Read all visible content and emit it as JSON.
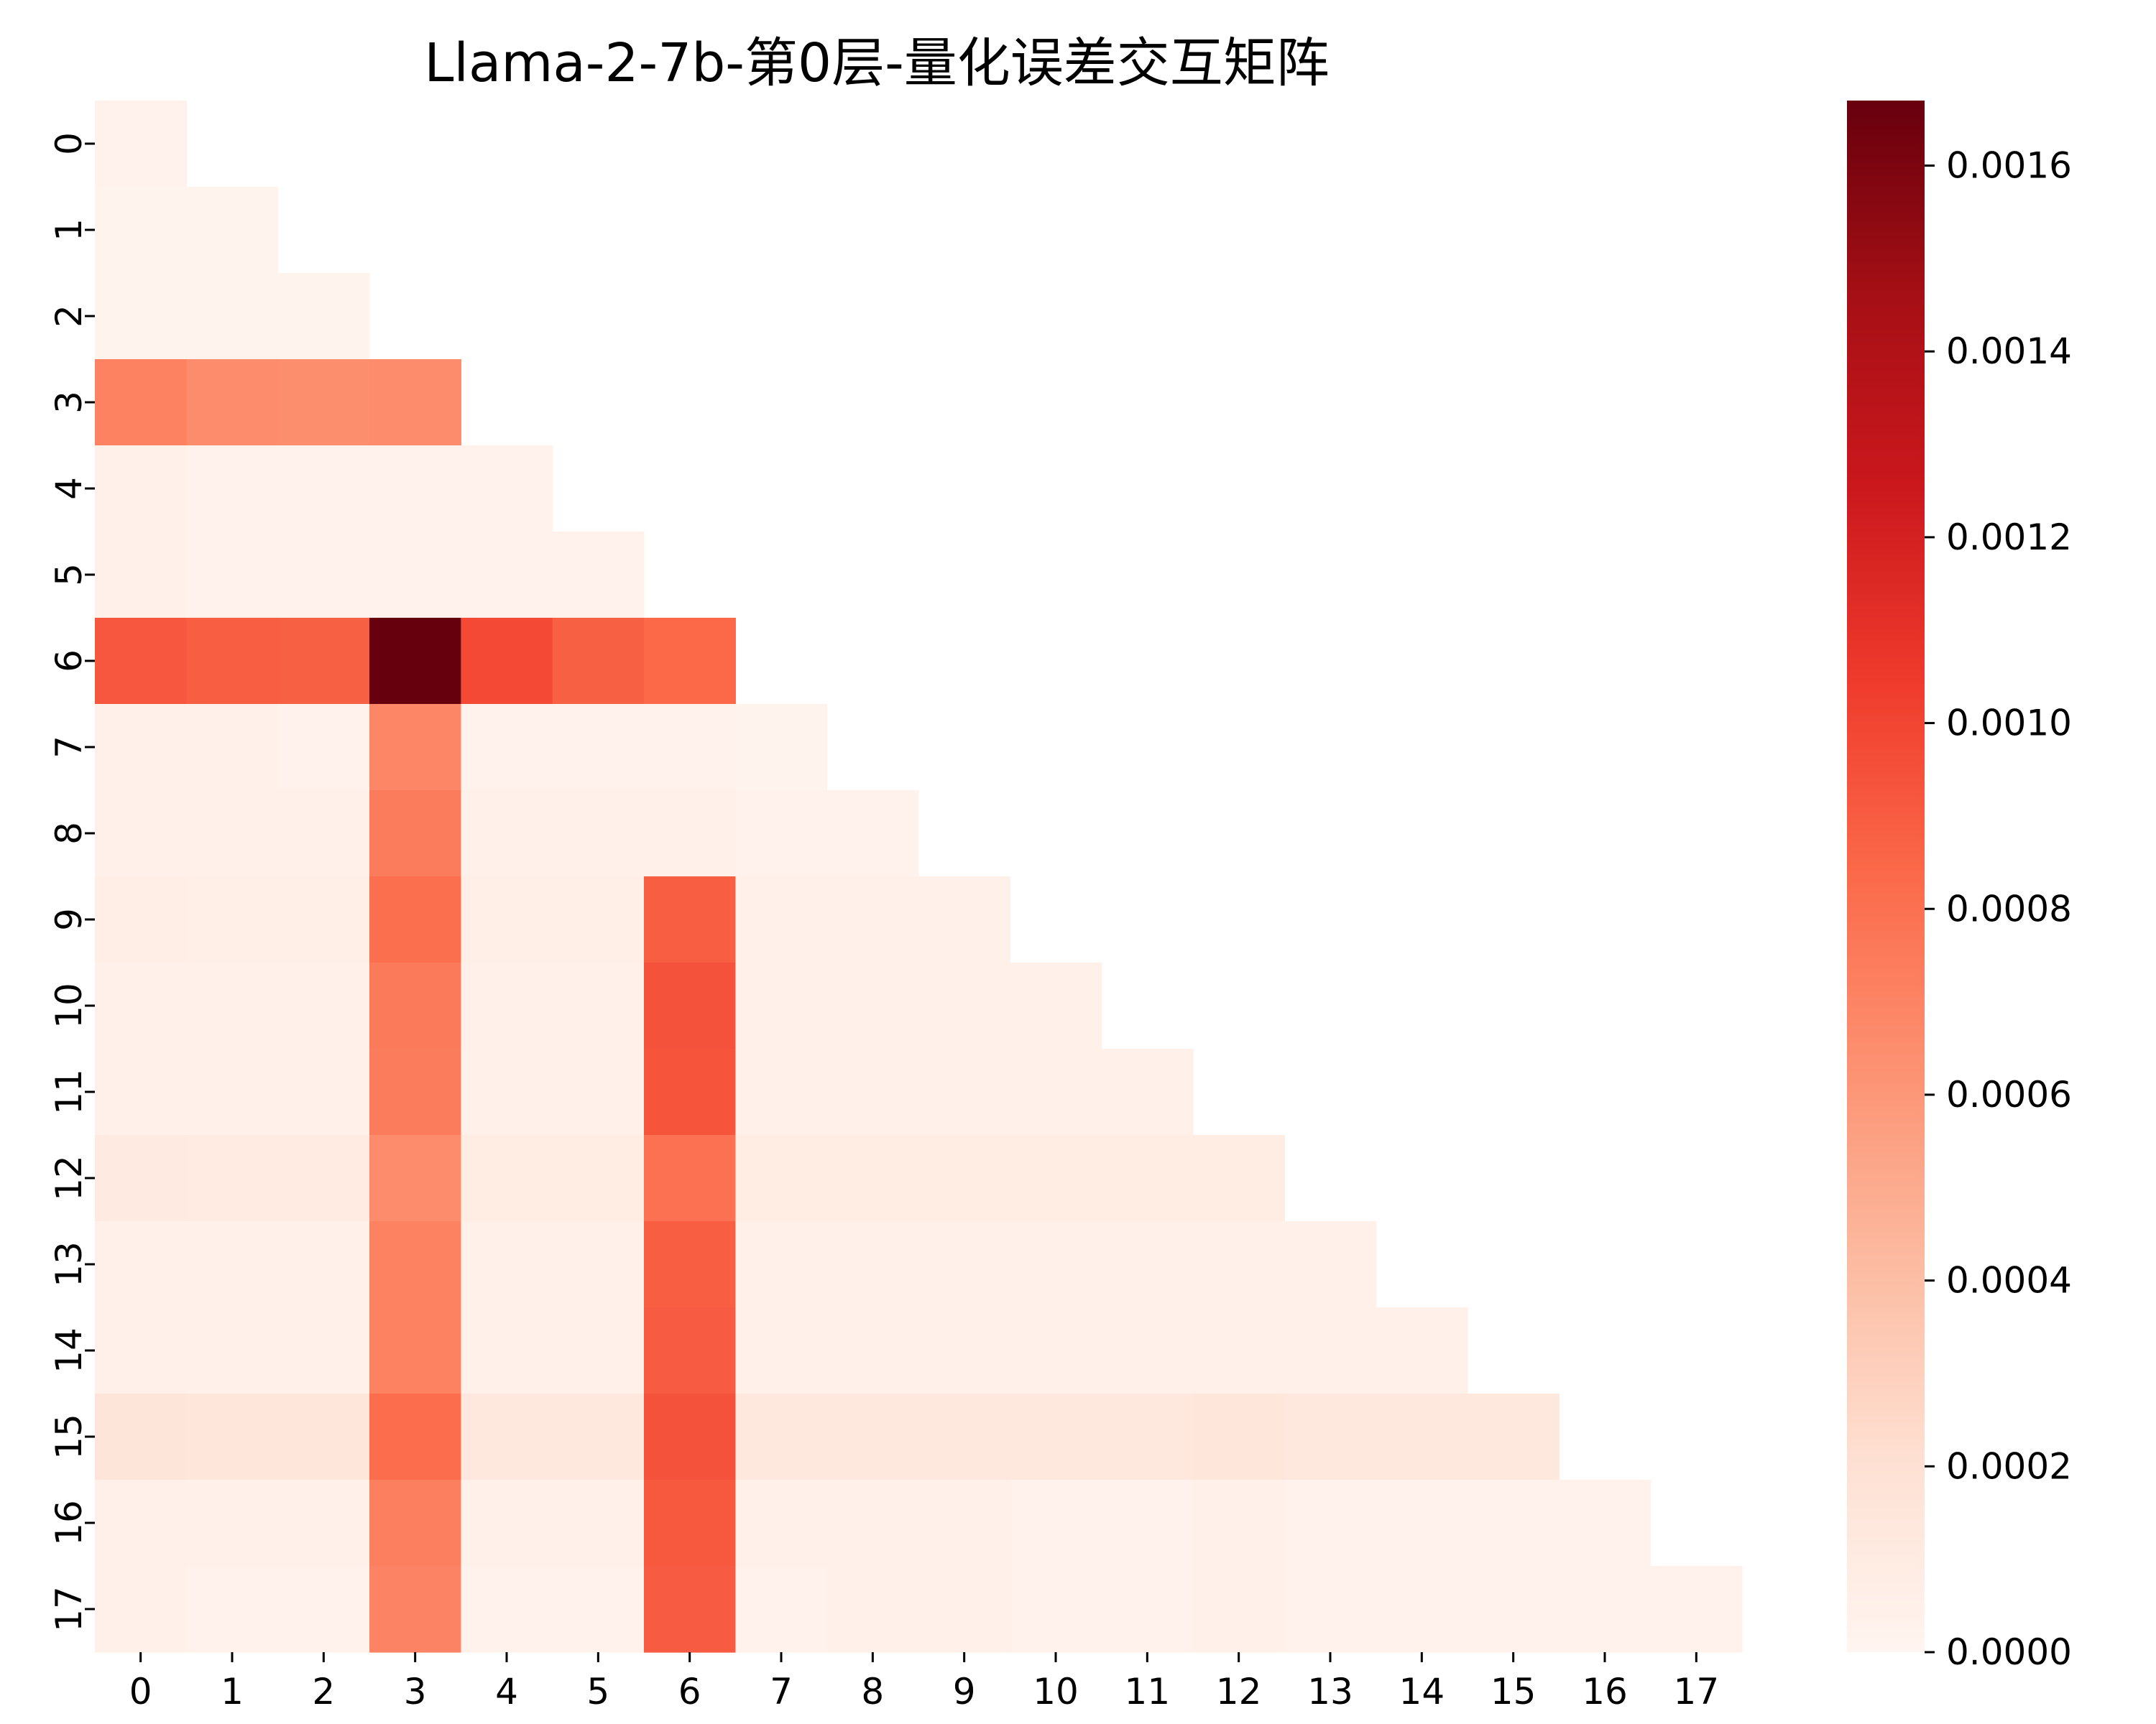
{
  "chart_data": {
    "type": "heatmap",
    "title": "Llama-2-7b-第0层-量化误差交互矩阵",
    "xlabel": "",
    "ylabel": "",
    "x_tick_labels": [
      "0",
      "1",
      "2",
      "3",
      "4",
      "5",
      "6",
      "7",
      "8",
      "9",
      "10",
      "11",
      "12",
      "13",
      "14",
      "15",
      "16",
      "17"
    ],
    "y_tick_labels": [
      "0",
      "1",
      "2",
      "3",
      "4",
      "5",
      "6",
      "7",
      "8",
      "9",
      "10",
      "11",
      "12",
      "13",
      "14",
      "15",
      "16",
      "17"
    ],
    "mask": "lower-triangle (upper triangle blank)",
    "colormap": "Reds",
    "vmin": 0.0,
    "vmax": 0.00167,
    "colorbar_ticks": [
      "0.0000",
      "0.0002",
      "0.0004",
      "0.0006",
      "0.0008",
      "0.0010",
      "0.0012",
      "0.0014",
      "0.0016"
    ],
    "matrix": [
      [
        3e-05
      ],
      [
        2e-05,
        2e-05
      ],
      [
        2e-05,
        2e-05,
        2e-05
      ],
      [
        0.00071,
        0.00066,
        0.00065,
        0.00066
      ],
      [
        4e-05,
        3e-05,
        3e-05,
        3e-05,
        3e-05
      ],
      [
        4e-05,
        3e-05,
        3e-05,
        3e-05,
        3e-05,
        3e-05
      ],
      [
        0.00092,
        0.00089,
        0.00088,
        0.00167,
        0.00098,
        0.00088,
        0.00084
      ],
      [
        4e-05,
        4e-05,
        3e-05,
        0.00069,
        3e-05,
        3e-05,
        3e-05,
        2e-05
      ],
      [
        5e-05,
        4e-05,
        4e-05,
        0.00074,
        4e-05,
        4e-05,
        4e-05,
        3e-05,
        3e-05
      ],
      [
        7e-05,
        6e-05,
        6e-05,
        0.00081,
        6e-05,
        6e-05,
        0.00089,
        5e-05,
        5e-05,
        5e-05
      ],
      [
        5e-05,
        4e-05,
        4e-05,
        0.00075,
        4e-05,
        4e-05,
        0.00094,
        4e-05,
        4e-05,
        4e-05,
        4e-05
      ],
      [
        5e-05,
        4e-05,
        4e-05,
        0.00074,
        4e-05,
        4e-05,
        0.00093,
        4e-05,
        4e-05,
        4e-05,
        4e-05,
        4e-05
      ],
      [
        0.00011,
        0.0001,
        0.0001,
        0.00066,
        9e-05,
        9e-05,
        0.0008,
        9e-05,
        9e-05,
        9e-05,
        9e-05,
        9e-05,
        9e-05
      ],
      [
        5e-05,
        4e-05,
        4e-05,
        0.00071,
        4e-05,
        4e-05,
        0.00089,
        4e-05,
        4e-05,
        5e-05,
        4e-05,
        4e-05,
        4e-05,
        4e-05
      ],
      [
        5e-05,
        4e-05,
        4e-05,
        0.00071,
        4e-05,
        4e-05,
        0.0009,
        4e-05,
        4e-05,
        4e-05,
        4e-05,
        4e-05,
        4e-05,
        4e-05,
        4e-05
      ],
      [
        0.00016,
        0.00015,
        0.00015,
        0.00082,
        0.00014,
        0.00014,
        0.00094,
        0.00014,
        0.00014,
        0.00014,
        0.00014,
        0.00014,
        0.00015,
        0.00014,
        0.00014,
        0.00013
      ],
      [
        5e-05,
        4e-05,
        4e-05,
        0.00072,
        4e-05,
        4e-05,
        0.00091,
        4e-05,
        4e-05,
        4e-05,
        3e-05,
        3e-05,
        5e-05,
        3e-05,
        3e-05,
        3e-05,
        3e-05
      ],
      [
        4e-05,
        3e-05,
        3e-05,
        0.0007,
        3e-05,
        3e-05,
        0.0009,
        3e-05,
        4e-05,
        4e-05,
        3e-05,
        3e-05,
        4e-05,
        3e-05,
        3e-05,
        3e-05,
        3e-05,
        3e-05
      ]
    ]
  }
}
